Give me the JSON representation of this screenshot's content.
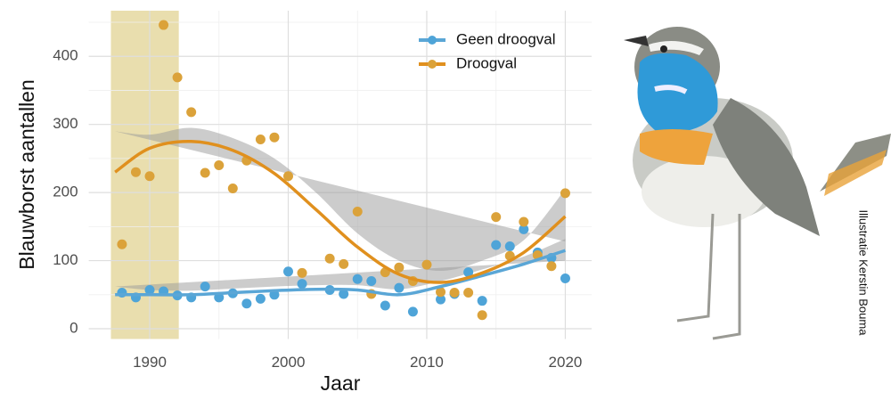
{
  "chart_data": {
    "type": "scatter",
    "x_label": "Jaar",
    "y_label": "Blauwborst aantallen",
    "credit": "Illustratie Kerstin Bouma",
    "xlim": [
      1985.6,
      2021.9
    ],
    "ylim": [
      -15,
      467
    ],
    "xticks": [
      1990,
      2000,
      2010,
      2020
    ],
    "yticks": [
      0,
      100,
      200,
      300,
      400
    ],
    "xminor": [
      1995,
      2005,
      2015
    ],
    "yminor": [
      50,
      150,
      250,
      350,
      450
    ],
    "grid": true,
    "highlight_range": [
      1987.2,
      1992.1
    ],
    "highlight_color": "#e8dcaa",
    "band_color": "#9a9a9a",
    "fit_x": [
      1987.5,
      1990,
      1993,
      1996,
      1999,
      2002,
      2005,
      2008,
      2011,
      2014,
      2017,
      2020
    ],
    "series": [
      {
        "name": "Geen droogval",
        "color": "#4ea4d8",
        "line_color": "#5aa6d6",
        "x": [
          1988,
          1989,
          1990,
          1991,
          1992,
          1993,
          1994,
          1995,
          1996,
          1997,
          1998,
          1999,
          2000,
          2001,
          2003,
          2004,
          2005,
          2006,
          2007,
          2008,
          2009,
          2011,
          2012,
          2013,
          2014,
          2015,
          2016,
          2017,
          2018,
          2019,
          2020
        ],
        "values": [
          53,
          46,
          57,
          55,
          49,
          46,
          62,
          46,
          52,
          37,
          44,
          50,
          84,
          66,
          57,
          51,
          73,
          70,
          34,
          60,
          25,
          43,
          51,
          83,
          41,
          123,
          121,
          146,
          112,
          104,
          74
        ],
        "fit": [
          50,
          50,
          50,
          53,
          56,
          58,
          57,
          50,
          62,
          78,
          95,
          115
        ],
        "ci_lower": [
          40,
          43,
          44,
          47,
          50,
          52,
          50,
          43,
          54,
          69,
          85,
          100
        ],
        "ci_upper": [
          62,
          57,
          56,
          59,
          62,
          64,
          64,
          58,
          70,
          87,
          106,
          132
        ]
      },
      {
        "name": "Droogval",
        "color": "#dba23a",
        "line_color": "#e0901e",
        "x": [
          1988,
          1989,
          1990,
          1991,
          1992,
          1993,
          1994,
          1995,
          1996,
          1997,
          1998,
          1999,
          2000,
          2001,
          2003,
          2004,
          2005,
          2006,
          2007,
          2008,
          2009,
          2010,
          2011,
          2012,
          2013,
          2014,
          2015,
          2016,
          2017,
          2018,
          2019,
          2020
        ],
        "values": [
          124,
          230,
          224,
          446,
          369,
          318,
          229,
          240,
          206,
          247,
          278,
          281,
          224,
          82,
          103,
          95,
          172,
          51,
          83,
          90,
          70,
          94,
          54,
          53,
          53,
          20,
          164,
          107,
          157,
          108,
          92,
          199
        ],
        "fit": [
          230,
          265,
          275,
          262,
          228,
          175,
          120,
          80,
          68,
          82,
          112,
          165
        ],
        "ci_lower": [
          185,
          245,
          255,
          245,
          205,
          150,
          100,
          62,
          52,
          65,
          92,
          128
        ],
        "ci_upper": [
          290,
          285,
          295,
          280,
          250,
          200,
          140,
          100,
          85,
          100,
          130,
          205
        ]
      }
    ]
  }
}
